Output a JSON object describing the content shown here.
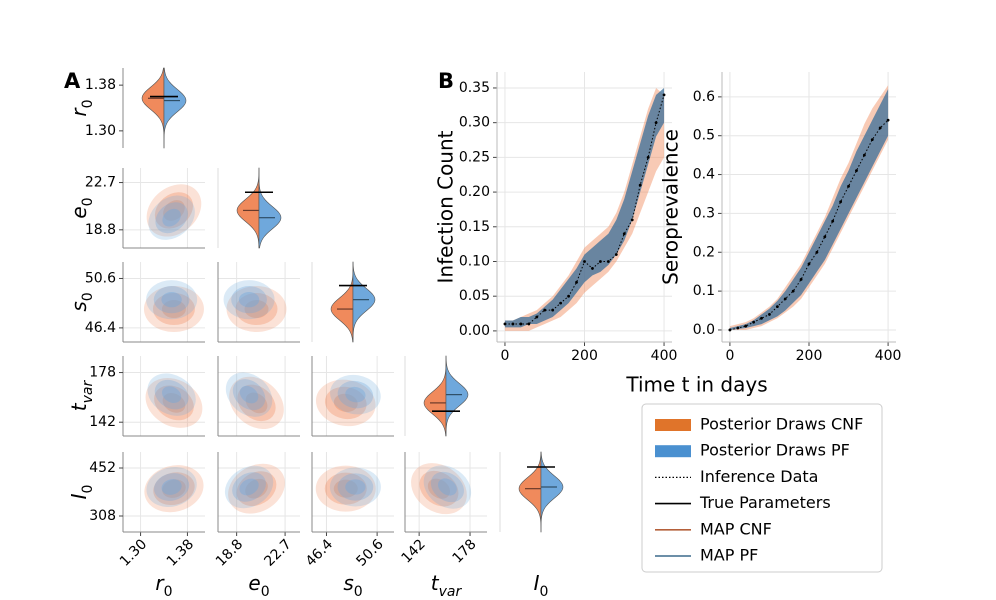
{
  "panel_labels": [
    "A",
    "B"
  ],
  "chart_data": [
    {
      "type": "pairplot",
      "cnf_color": "#f08a5c",
      "pf_color": "#6fa8dc",
      "variables": [
        {
          "name": "r",
          "sub": "0",
          "lim": [
            1.27,
            1.41
          ],
          "ticks": [
            {
              "value": 1.3,
              "label": "1.30"
            },
            {
              "value": 1.38,
              "label": "1.38"
            }
          ],
          "true": 1.36,
          "map_cnf": 1.357,
          "map_pf": 1.353
        },
        {
          "name": "e",
          "sub": "0",
          "lim": [
            17.3,
            23.9
          ],
          "ticks": [
            18.8,
            22.7
          ],
          "true": 21.9,
          "map_cnf": 20.4,
          "map_pf": 19.8
        },
        {
          "name": "s",
          "sub": "0",
          "lim": [
            45.2,
            52.0
          ],
          "ticks": [
            46.4,
            50.6
          ],
          "true": 50.0,
          "map_cnf": 48.0,
          "map_pf": 48.8
        },
        {
          "name": "t",
          "sub": "var",
          "lim": [
            132,
            190
          ],
          "ticks": [
            142,
            178
          ],
          "true": 150,
          "map_cnf": 156,
          "map_pf": 162
        },
        {
          "name": "I",
          "sub": "0",
          "lim": [
            260,
            500
          ],
          "ticks": [
            308,
            452
          ],
          "true": 455,
          "map_cnf": 390,
          "map_pf": 395
        }
      ]
    },
    {
      "type": "line",
      "ylabel": "Infection Count",
      "grid": true,
      "x": [
        0,
        20,
        40,
        60,
        80,
        100,
        120,
        140,
        160,
        180,
        200,
        220,
        240,
        260,
        280,
        300,
        320,
        340,
        360,
        380,
        400
      ],
      "xlim": [
        -20,
        420
      ],
      "xticks": [
        0,
        200,
        400
      ],
      "ylim": [
        -0.016,
        0.373
      ],
      "yticks": [
        {
          "value": 0,
          "label": "0.00"
        },
        {
          "value": 0.05,
          "label": "0.05"
        },
        {
          "value": 0.1,
          "label": "0.10"
        },
        {
          "value": 0.15,
          "label": "0.15"
        },
        {
          "value": 0.2,
          "label": "0.20"
        },
        {
          "value": 0.25,
          "label": "0.25"
        },
        {
          "value": 0.3,
          "label": "0.30"
        },
        {
          "value": 0.35,
          "label": "0.35"
        }
      ],
      "series": [
        {
          "name": "Posterior Draws CNF",
          "color": "#f08a5c",
          "lower": [
            0.0,
            0.0,
            0.0,
            0.0,
            0.005,
            0.01,
            0.015,
            0.02,
            0.03,
            0.04,
            0.055,
            0.065,
            0.075,
            0.085,
            0.1,
            0.12,
            0.14,
            0.17,
            0.2,
            0.23,
            0.25
          ],
          "upper": [
            0.015,
            0.015,
            0.02,
            0.025,
            0.03,
            0.04,
            0.05,
            0.065,
            0.08,
            0.1,
            0.12,
            0.13,
            0.14,
            0.15,
            0.17,
            0.2,
            0.24,
            0.28,
            0.32,
            0.35,
            0.34
          ]
        },
        {
          "name": "Posterior Draws PF",
          "color": "#3a6d9a",
          "lower": [
            0.005,
            0.005,
            0.005,
            0.01,
            0.01,
            0.015,
            0.02,
            0.03,
            0.04,
            0.055,
            0.07,
            0.08,
            0.085,
            0.095,
            0.11,
            0.13,
            0.16,
            0.2,
            0.24,
            0.28,
            0.3
          ],
          "upper": [
            0.015,
            0.015,
            0.02,
            0.02,
            0.025,
            0.035,
            0.045,
            0.06,
            0.075,
            0.09,
            0.11,
            0.12,
            0.13,
            0.14,
            0.16,
            0.19,
            0.23,
            0.27,
            0.31,
            0.34,
            0.35
          ]
        },
        {
          "name": "Inference Data",
          "color": "#000000",
          "values": [
            0.01,
            0.01,
            0.01,
            0.01,
            0.02,
            0.03,
            0.03,
            0.04,
            0.05,
            0.07,
            0.1,
            0.09,
            0.1,
            0.1,
            0.11,
            0.14,
            0.16,
            0.21,
            0.25,
            0.3,
            0.34
          ]
        }
      ]
    },
    {
      "type": "line",
      "ylabel": "Seroprevalence",
      "grid": true,
      "x": [
        0,
        20,
        40,
        60,
        80,
        100,
        120,
        140,
        160,
        180,
        200,
        220,
        240,
        260,
        280,
        300,
        320,
        340,
        360,
        380,
        400
      ],
      "xlim": [
        -20,
        420
      ],
      "xticks": [
        0,
        200,
        400
      ],
      "ylim": [
        -0.031,
        0.664
      ],
      "yticks": [
        {
          "value": 0,
          "label": "0.0"
        },
        {
          "value": 0.1,
          "label": "0.1"
        },
        {
          "value": 0.2,
          "label": "0.2"
        },
        {
          "value": 0.3,
          "label": "0.3"
        },
        {
          "value": 0.4,
          "label": "0.4"
        },
        {
          "value": 0.5,
          "label": "0.5"
        },
        {
          "value": 0.6,
          "label": "0.6"
        }
      ],
      "series": [
        {
          "name": "Posterior Draws CNF",
          "color": "#f08a5c",
          "lower": [
            0,
            0,
            0,
            0.005,
            0.01,
            0.02,
            0.03,
            0.045,
            0.06,
            0.08,
            0.11,
            0.14,
            0.17,
            0.21,
            0.25,
            0.29,
            0.33,
            0.37,
            0.41,
            0.45,
            0.49
          ],
          "upper": [
            0.01,
            0.015,
            0.02,
            0.03,
            0.045,
            0.06,
            0.08,
            0.11,
            0.14,
            0.17,
            0.21,
            0.25,
            0.29,
            0.34,
            0.39,
            0.43,
            0.48,
            0.53,
            0.57,
            0.6,
            0.63
          ]
        },
        {
          "name": "Posterior Draws PF",
          "color": "#3a6d9a",
          "lower": [
            0,
            0.002,
            0.005,
            0.01,
            0.015,
            0.025,
            0.035,
            0.05,
            0.07,
            0.09,
            0.12,
            0.15,
            0.18,
            0.22,
            0.26,
            0.3,
            0.34,
            0.38,
            0.42,
            0.46,
            0.5
          ],
          "upper": [
            0.005,
            0.01,
            0.015,
            0.025,
            0.04,
            0.055,
            0.075,
            0.1,
            0.13,
            0.16,
            0.2,
            0.24,
            0.28,
            0.32,
            0.37,
            0.41,
            0.46,
            0.5,
            0.54,
            0.58,
            0.62
          ]
        },
        {
          "name": "Inference Data",
          "color": "#000000",
          "values": [
            0,
            0.005,
            0.01,
            0.02,
            0.03,
            0.04,
            0.06,
            0.08,
            0.1,
            0.13,
            0.17,
            0.2,
            0.24,
            0.28,
            0.33,
            0.37,
            0.41,
            0.45,
            0.49,
            0.52,
            0.54
          ]
        }
      ]
    }
  ],
  "xlabel": "Time t in days",
  "legend": [
    {
      "name": "Posterior Draws CNF",
      "color": "#e0742a",
      "style": "band"
    },
    {
      "name": "Posterior Draws PF",
      "color": "#4a90d0",
      "style": "band"
    },
    {
      "name": "Inference Data",
      "color": "#000000",
      "style": "dotted"
    },
    {
      "name": "True Parameters",
      "color": "#000000",
      "style": "line"
    },
    {
      "name": "MAP CNF",
      "color": "#b5603a",
      "style": "line"
    },
    {
      "name": "MAP PF",
      "color": "#3b6a8c",
      "style": "line"
    }
  ]
}
